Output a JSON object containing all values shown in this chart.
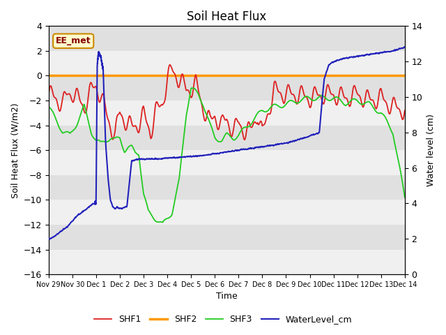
{
  "title": "Soil Heat Flux",
  "xlabel": "Time",
  "ylabel_left": "Soil Heat Flux (W/m2)",
  "ylabel_right": "Water level (cm)",
  "xlim_days": [
    0,
    15
  ],
  "ylim_left": [
    -16,
    4
  ],
  "ylim_right": [
    0,
    14
  ],
  "x_tick_labels": [
    "Nov 29",
    "Nov 30",
    "Dec 1",
    "Dec 2",
    "Dec 3",
    "Dec 4",
    "Dec 5",
    "Dec 6",
    "Dec 7",
    "Dec 8",
    "Dec 9",
    "Dec 10",
    "Dec 11",
    "Dec 12",
    "Dec 13",
    "Dec 14"
  ],
  "annotation_text": "EE_met",
  "annotation_box_facecolor": "#ffffcc",
  "annotation_box_edgecolor": "#cc8800",
  "colors": {
    "SHF1": "#dd2222",
    "SHF2": "#ff9900",
    "SHF3": "#22cc22",
    "WaterLevel": "#2222bb"
  },
  "background_color": "#e0e0e0",
  "stripe_color": "#f0f0f0",
  "legend_labels": [
    "SHF1",
    "SHF2",
    "SHF3",
    "WaterLevel_cm"
  ],
  "SHF2_value": 0.0,
  "SHF1_knots_x": [
    0,
    0.3,
    0.6,
    0.8,
    1.0,
    1.2,
    1.5,
    1.8,
    2.0,
    2.2,
    2.5,
    2.8,
    3.0,
    3.2,
    3.5,
    3.8,
    4.0,
    4.3,
    4.5,
    4.8,
    5.0,
    5.2,
    5.4,
    5.6,
    5.8,
    6.0,
    6.2,
    6.5,
    6.8,
    7.0,
    7.3,
    7.5,
    7.8,
    8.0,
    8.3,
    8.5,
    8.8,
    9.0,
    9.2,
    9.5,
    10.0,
    10.5,
    11.0,
    11.5,
    12.0,
    12.5,
    13.0,
    13.5,
    14.0,
    14.5,
    15.0
  ],
  "SHF1_knots_y": [
    -1.5,
    -1.8,
    -2.3,
    -1.5,
    -1.3,
    -1.8,
    -2.5,
    -1.2,
    -0.8,
    -1.6,
    -3.5,
    -4.8,
    -3.0,
    -3.5,
    -4.2,
    -3.8,
    -3.2,
    -4.5,
    -3.0,
    -2.2,
    -0.2,
    0.4,
    0.0,
    -0.5,
    -1.2,
    -1.0,
    -0.7,
    -2.5,
    -3.8,
    -3.2,
    -4.0,
    -3.5,
    -4.5,
    -3.8,
    -4.5,
    -4.5,
    -3.0,
    -4.8,
    -3.2,
    -1.2,
    -1.5,
    -1.5,
    -1.8,
    -1.5,
    -1.5,
    -1.8,
    -1.5,
    -2.0,
    -1.8,
    -2.5,
    -2.8
  ],
  "SHF3_knots_x": [
    0,
    0.3,
    0.6,
    0.9,
    1.2,
    1.5,
    1.8,
    2.0,
    2.2,
    2.4,
    2.6,
    2.8,
    3.0,
    3.1,
    3.2,
    3.35,
    3.5,
    3.65,
    3.8,
    4.0,
    4.2,
    4.5,
    4.8,
    5.0,
    5.2,
    5.5,
    5.8,
    6.0,
    6.3,
    6.5,
    6.8,
    7.0,
    7.3,
    7.5,
    7.8,
    8.0,
    8.5,
    9.0,
    9.5,
    10.0,
    10.5,
    11.0,
    11.5,
    12.0,
    12.5,
    13.0,
    13.5,
    14.0,
    14.5,
    15.0
  ],
  "SHF3_knots_y": [
    -2.5,
    -3.5,
    -4.5,
    -4.8,
    -3.8,
    -2.5,
    -4.5,
    -5.2,
    -5.5,
    -5.2,
    -5.0,
    -5.2,
    -5.0,
    -5.5,
    -6.0,
    -5.8,
    -5.8,
    -6.2,
    -6.2,
    -9.5,
    -11.0,
    -11.5,
    -12.0,
    -11.5,
    -11.0,
    -8.5,
    -3.0,
    -1.0,
    -1.5,
    -2.2,
    -4.0,
    -5.0,
    -5.2,
    -4.8,
    -5.0,
    -4.8,
    -3.8,
    -2.8,
    -2.5,
    -2.3,
    -2.0,
    -1.8,
    -1.8,
    -1.8,
    -2.2,
    -2.0,
    -2.3,
    -3.0,
    -4.5,
    -9.8
  ],
  "water_knots_x": [
    0,
    0.2,
    0.4,
    0.6,
    0.8,
    1.0,
    1.2,
    1.4,
    1.6,
    1.8,
    1.9,
    2.0,
    2.05,
    2.1,
    2.2,
    2.3,
    2.4,
    2.5,
    2.6,
    2.7,
    2.8,
    2.9,
    3.0,
    3.1,
    3.2,
    3.3,
    3.5,
    3.8,
    4.0,
    4.5,
    5.0,
    5.5,
    6.0,
    6.5,
    7.0,
    7.5,
    8.0,
    8.5,
    9.0,
    9.5,
    10.0,
    10.3,
    10.5,
    10.8,
    11.0,
    11.2,
    11.4,
    11.5,
    11.6,
    11.8,
    12.0,
    12.5,
    13.0,
    13.5,
    14.0,
    14.5,
    15.0
  ],
  "water_knots_y": [
    2.0,
    2.1,
    2.3,
    2.5,
    2.7,
    3.0,
    3.3,
    3.5,
    3.7,
    3.9,
    4.0,
    4.0,
    11.8,
    12.5,
    12.3,
    11.5,
    7.5,
    5.5,
    4.2,
    3.8,
    3.7,
    3.8,
    3.7,
    3.7,
    3.8,
    3.8,
    6.4,
    6.5,
    6.5,
    6.5,
    6.55,
    6.6,
    6.65,
    6.7,
    6.8,
    6.9,
    7.0,
    7.1,
    7.2,
    7.3,
    7.4,
    7.5,
    7.6,
    7.7,
    7.8,
    7.9,
    8.0,
    9.5,
    11.0,
    11.8,
    12.0,
    12.2,
    12.3,
    12.4,
    12.5,
    12.6,
    12.8
  ]
}
